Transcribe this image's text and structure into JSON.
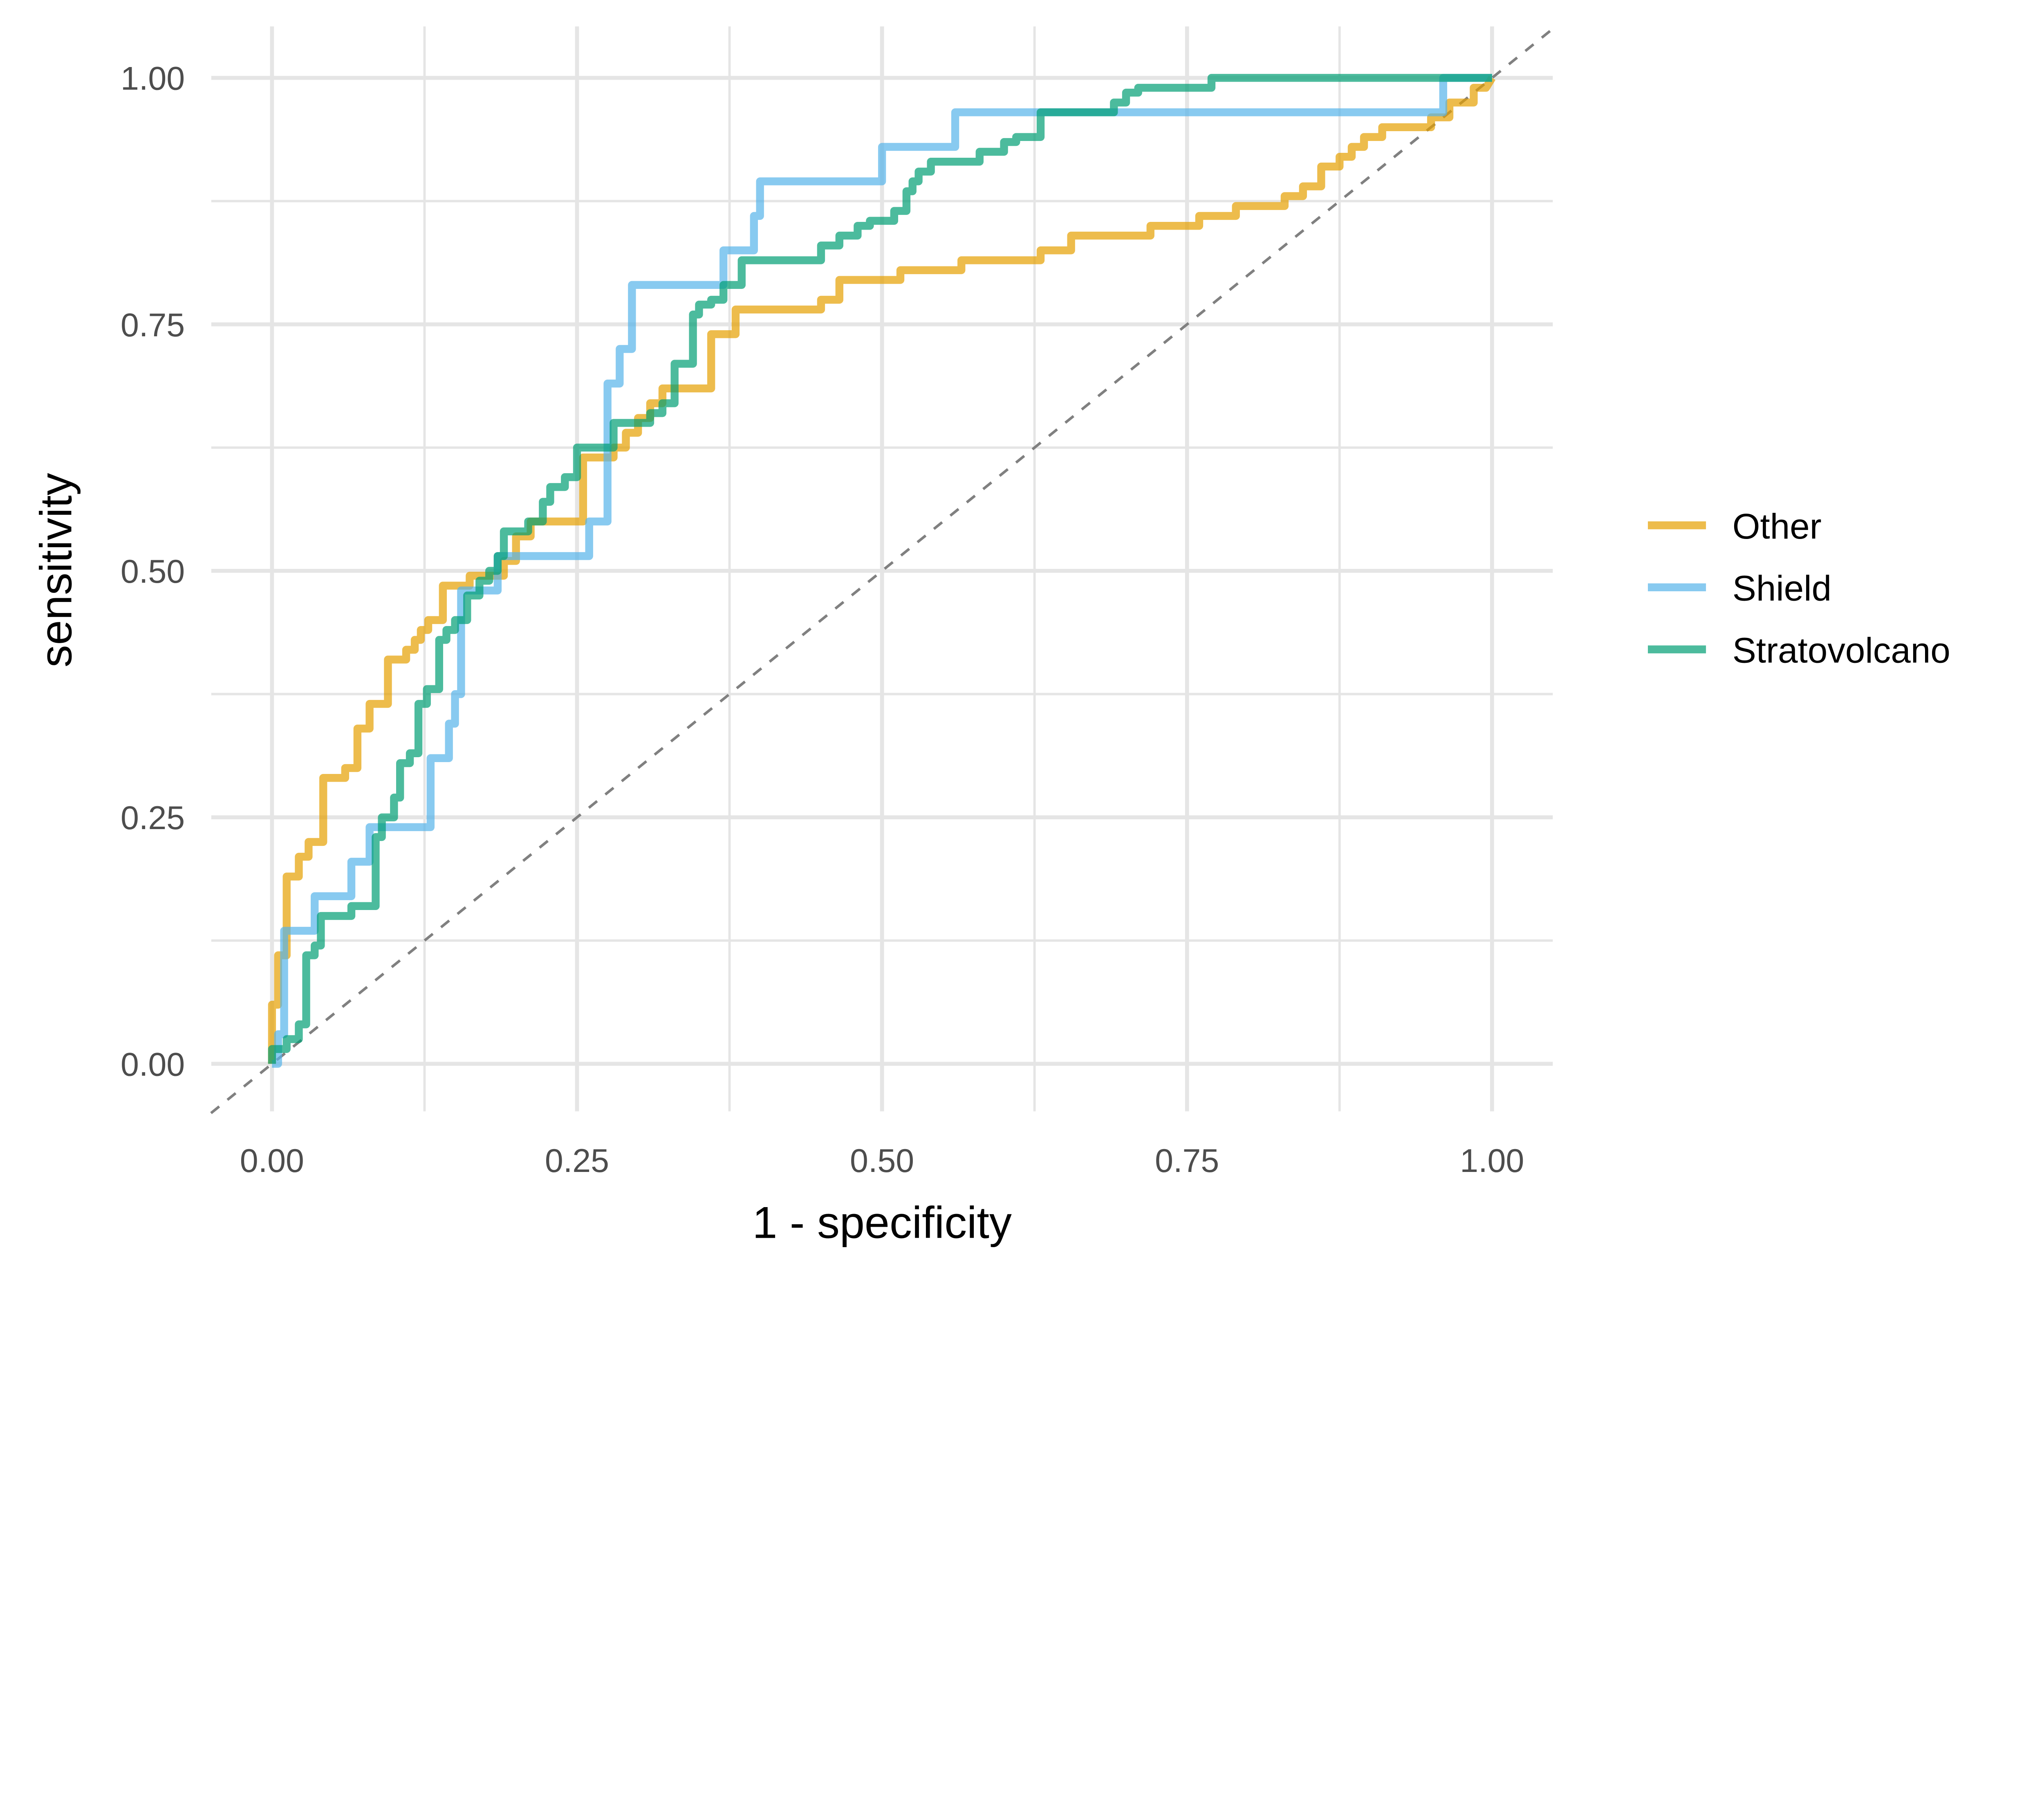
{
  "chart_data": {
    "type": "line",
    "title": "",
    "xlabel": "1 - specificity",
    "ylabel": "sensitivity",
    "xlim": [
      0,
      1
    ],
    "ylim": [
      0,
      1
    ],
    "grid": true,
    "legend_position": "right",
    "xticks": [
      "0.00",
      "0.25",
      "0.50",
      "0.75",
      "1.00"
    ],
    "yticks": [
      "0.00",
      "0.25",
      "0.50",
      "0.75",
      "1.00"
    ],
    "reference_line": {
      "type": "diagonal",
      "style": "dashed",
      "color": "#808080"
    },
    "series": [
      {
        "name": "Other",
        "color": "#E69F00",
        "points": [
          [
            0,
            0
          ],
          [
            0,
            0.06
          ],
          [
            0.005,
            0.06
          ],
          [
            0.005,
            0.11
          ],
          [
            0.012,
            0.11
          ],
          [
            0.012,
            0.19
          ],
          [
            0.022,
            0.19
          ],
          [
            0.022,
            0.21
          ],
          [
            0.03,
            0.21
          ],
          [
            0.03,
            0.225
          ],
          [
            0.042,
            0.225
          ],
          [
            0.042,
            0.29
          ],
          [
            0.06,
            0.29
          ],
          [
            0.06,
            0.3
          ],
          [
            0.07,
            0.3
          ],
          [
            0.07,
            0.34
          ],
          [
            0.08,
            0.34
          ],
          [
            0.08,
            0.365
          ],
          [
            0.095,
            0.365
          ],
          [
            0.095,
            0.41
          ],
          [
            0.11,
            0.41
          ],
          [
            0.11,
            0.42
          ],
          [
            0.117,
            0.42
          ],
          [
            0.117,
            0.43
          ],
          [
            0.122,
            0.43
          ],
          [
            0.122,
            0.44
          ],
          [
            0.128,
            0.44
          ],
          [
            0.128,
            0.45
          ],
          [
            0.14,
            0.45
          ],
          [
            0.14,
            0.485
          ],
          [
            0.162,
            0.485
          ],
          [
            0.162,
            0.495
          ],
          [
            0.19,
            0.495
          ],
          [
            0.19,
            0.51
          ],
          [
            0.2,
            0.51
          ],
          [
            0.2,
            0.535
          ],
          [
            0.212,
            0.535
          ],
          [
            0.212,
            0.55
          ],
          [
            0.255,
            0.55
          ],
          [
            0.255,
            0.615
          ],
          [
            0.28,
            0.615
          ],
          [
            0.28,
            0.625
          ],
          [
            0.29,
            0.625
          ],
          [
            0.29,
            0.64
          ],
          [
            0.3,
            0.64
          ],
          [
            0.3,
            0.655
          ],
          [
            0.31,
            0.655
          ],
          [
            0.31,
            0.67
          ],
          [
            0.32,
            0.67
          ],
          [
            0.32,
            0.685
          ],
          [
            0.36,
            0.685
          ],
          [
            0.36,
            0.74
          ],
          [
            0.38,
            0.74
          ],
          [
            0.38,
            0.765
          ],
          [
            0.45,
            0.765
          ],
          [
            0.45,
            0.775
          ],
          [
            0.465,
            0.775
          ],
          [
            0.465,
            0.795
          ],
          [
            0.515,
            0.795
          ],
          [
            0.515,
            0.805
          ],
          [
            0.565,
            0.805
          ],
          [
            0.565,
            0.815
          ],
          [
            0.63,
            0.815
          ],
          [
            0.63,
            0.825
          ],
          [
            0.655,
            0.825
          ],
          [
            0.655,
            0.84
          ],
          [
            0.72,
            0.84
          ],
          [
            0.72,
            0.85
          ],
          [
            0.76,
            0.85
          ],
          [
            0.76,
            0.86
          ],
          [
            0.79,
            0.86
          ],
          [
            0.79,
            0.87
          ],
          [
            0.83,
            0.87
          ],
          [
            0.83,
            0.88
          ],
          [
            0.845,
            0.88
          ],
          [
            0.845,
            0.89
          ],
          [
            0.86,
            0.89
          ],
          [
            0.86,
            0.91
          ],
          [
            0.875,
            0.91
          ],
          [
            0.875,
            0.92
          ],
          [
            0.885,
            0.92
          ],
          [
            0.885,
            0.93
          ],
          [
            0.895,
            0.93
          ],
          [
            0.895,
            0.94
          ],
          [
            0.91,
            0.94
          ],
          [
            0.91,
            0.95
          ],
          [
            0.95,
            0.95
          ],
          [
            0.95,
            0.96
          ],
          [
            0.965,
            0.96
          ],
          [
            0.965,
            0.975
          ],
          [
            0.985,
            0.975
          ],
          [
            0.985,
            0.99
          ],
          [
            0.995,
            0.99
          ],
          [
            1,
            1
          ]
        ]
      },
      {
        "name": "Shield",
        "color": "#56B4E9",
        "points": [
          [
            0,
            0
          ],
          [
            0.005,
            0
          ],
          [
            0.005,
            0.03
          ],
          [
            0.01,
            0.03
          ],
          [
            0.01,
            0.135
          ],
          [
            0.035,
            0.135
          ],
          [
            0.035,
            0.17
          ],
          [
            0.065,
            0.17
          ],
          [
            0.065,
            0.205
          ],
          [
            0.08,
            0.205
          ],
          [
            0.08,
            0.24
          ],
          [
            0.13,
            0.24
          ],
          [
            0.13,
            0.31
          ],
          [
            0.145,
            0.31
          ],
          [
            0.145,
            0.345
          ],
          [
            0.15,
            0.345
          ],
          [
            0.15,
            0.375
          ],
          [
            0.155,
            0.375
          ],
          [
            0.155,
            0.48
          ],
          [
            0.185,
            0.48
          ],
          [
            0.185,
            0.515
          ],
          [
            0.26,
            0.515
          ],
          [
            0.26,
            0.55
          ],
          [
            0.275,
            0.55
          ],
          [
            0.275,
            0.69
          ],
          [
            0.285,
            0.69
          ],
          [
            0.285,
            0.725
          ],
          [
            0.295,
            0.725
          ],
          [
            0.295,
            0.79
          ],
          [
            0.37,
            0.79
          ],
          [
            0.37,
            0.825
          ],
          [
            0.395,
            0.825
          ],
          [
            0.395,
            0.86
          ],
          [
            0.4,
            0.86
          ],
          [
            0.4,
            0.895
          ],
          [
            0.5,
            0.895
          ],
          [
            0.5,
            0.93
          ],
          [
            0.56,
            0.93
          ],
          [
            0.56,
            0.965
          ],
          [
            0.96,
            0.965
          ],
          [
            0.96,
            1
          ],
          [
            1,
            1
          ]
        ]
      },
      {
        "name": "Stratovolcano",
        "color": "#009E73",
        "points": [
          [
            0,
            0
          ],
          [
            0,
            0.015
          ],
          [
            0.012,
            0.015
          ],
          [
            0.012,
            0.025
          ],
          [
            0.022,
            0.025
          ],
          [
            0.022,
            0.04
          ],
          [
            0.028,
            0.04
          ],
          [
            0.028,
            0.11
          ],
          [
            0.035,
            0.11
          ],
          [
            0.035,
            0.12
          ],
          [
            0.04,
            0.12
          ],
          [
            0.04,
            0.15
          ],
          [
            0.065,
            0.15
          ],
          [
            0.065,
            0.16
          ],
          [
            0.085,
            0.16
          ],
          [
            0.085,
            0.23
          ],
          [
            0.09,
            0.23
          ],
          [
            0.09,
            0.25
          ],
          [
            0.1,
            0.25
          ],
          [
            0.1,
            0.27
          ],
          [
            0.105,
            0.27
          ],
          [
            0.105,
            0.305
          ],
          [
            0.113,
            0.305
          ],
          [
            0.113,
            0.315
          ],
          [
            0.12,
            0.315
          ],
          [
            0.12,
            0.365
          ],
          [
            0.127,
            0.365
          ],
          [
            0.127,
            0.38
          ],
          [
            0.137,
            0.38
          ],
          [
            0.137,
            0.43
          ],
          [
            0.143,
            0.43
          ],
          [
            0.143,
            0.44
          ],
          [
            0.15,
            0.44
          ],
          [
            0.15,
            0.45
          ],
          [
            0.16,
            0.45
          ],
          [
            0.16,
            0.475
          ],
          [
            0.17,
            0.475
          ],
          [
            0.17,
            0.49
          ],
          [
            0.178,
            0.49
          ],
          [
            0.178,
            0.5
          ],
          [
            0.185,
            0.5
          ],
          [
            0.185,
            0.515
          ],
          [
            0.19,
            0.515
          ],
          [
            0.19,
            0.54
          ],
          [
            0.21,
            0.54
          ],
          [
            0.21,
            0.55
          ],
          [
            0.222,
            0.55
          ],
          [
            0.222,
            0.57
          ],
          [
            0.228,
            0.57
          ],
          [
            0.228,
            0.585
          ],
          [
            0.24,
            0.585
          ],
          [
            0.24,
            0.595
          ],
          [
            0.25,
            0.595
          ],
          [
            0.25,
            0.625
          ],
          [
            0.28,
            0.625
          ],
          [
            0.28,
            0.65
          ],
          [
            0.31,
            0.65
          ],
          [
            0.31,
            0.66
          ],
          [
            0.32,
            0.66
          ],
          [
            0.32,
            0.67
          ],
          [
            0.33,
            0.67
          ],
          [
            0.33,
            0.71
          ],
          [
            0.345,
            0.71
          ],
          [
            0.345,
            0.76
          ],
          [
            0.35,
            0.76
          ],
          [
            0.35,
            0.77
          ],
          [
            0.36,
            0.77
          ],
          [
            0.36,
            0.775
          ],
          [
            0.37,
            0.775
          ],
          [
            0.37,
            0.79
          ],
          [
            0.385,
            0.79
          ],
          [
            0.385,
            0.815
          ],
          [
            0.45,
            0.815
          ],
          [
            0.45,
            0.83
          ],
          [
            0.465,
            0.83
          ],
          [
            0.465,
            0.84
          ],
          [
            0.48,
            0.84
          ],
          [
            0.48,
            0.85
          ],
          [
            0.49,
            0.85
          ],
          [
            0.49,
            0.855
          ],
          [
            0.51,
            0.855
          ],
          [
            0.51,
            0.865
          ],
          [
            0.52,
            0.865
          ],
          [
            0.52,
            0.885
          ],
          [
            0.525,
            0.885
          ],
          [
            0.525,
            0.895
          ],
          [
            0.53,
            0.895
          ],
          [
            0.53,
            0.905
          ],
          [
            0.54,
            0.905
          ],
          [
            0.54,
            0.915
          ],
          [
            0.58,
            0.915
          ],
          [
            0.58,
            0.925
          ],
          [
            0.6,
            0.925
          ],
          [
            0.6,
            0.935
          ],
          [
            0.61,
            0.935
          ],
          [
            0.61,
            0.94
          ],
          [
            0.63,
            0.94
          ],
          [
            0.63,
            0.965
          ],
          [
            0.69,
            0.965
          ],
          [
            0.69,
            0.975
          ],
          [
            0.7,
            0.975
          ],
          [
            0.7,
            0.985
          ],
          [
            0.71,
            0.985
          ],
          [
            0.71,
            0.99
          ],
          [
            0.77,
            0.99
          ],
          [
            0.77,
            1
          ],
          [
            1,
            1
          ]
        ]
      }
    ]
  }
}
